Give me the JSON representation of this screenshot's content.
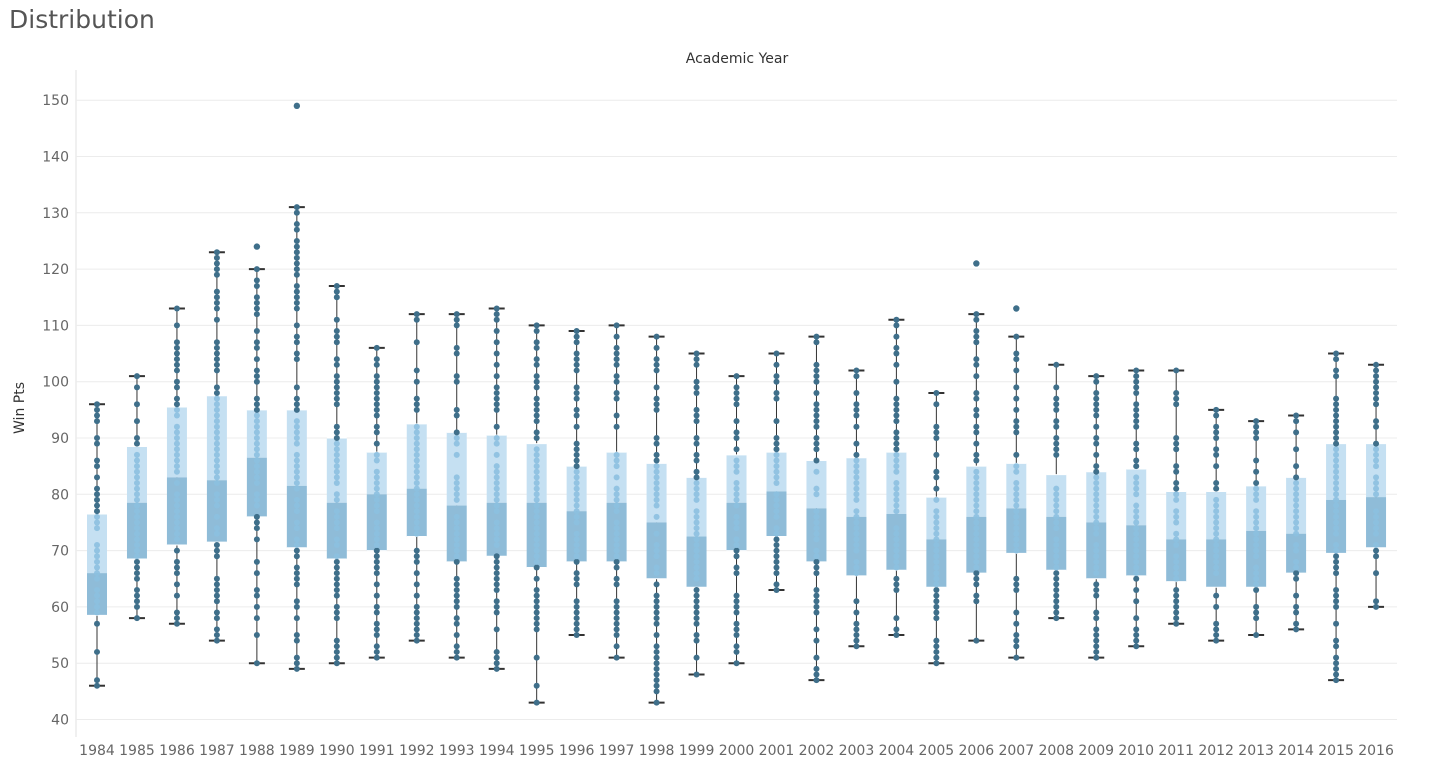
{
  "page": {
    "title": "Distribution"
  },
  "colors": {
    "upper_box": "#c5e0f2",
    "lower_box": "#8fbcd8",
    "point_light": "#8cc0e0",
    "point_dark": "#3f6f8a",
    "whisker": "#333333",
    "grid": "#ececec"
  },
  "chart_data": {
    "type": "box",
    "title": "Academic Year",
    "xlabel": "",
    "ylabel": "Win Pts",
    "ylim": [
      40,
      152
    ],
    "yticks": [
      40,
      50,
      60,
      70,
      80,
      90,
      100,
      110,
      120,
      130,
      140,
      150
    ],
    "grid": true,
    "categories": [
      "1984",
      "1985",
      "1986",
      "1987",
      "1988",
      "1989",
      "1990",
      "1991",
      "1992",
      "1993",
      "1994",
      "1995",
      "1996",
      "1997",
      "1998",
      "1999",
      "2000",
      "2001",
      "2002",
      "2003",
      "2004",
      "2005",
      "2006",
      "2007",
      "2008",
      "2009",
      "2010",
      "2011",
      "2012",
      "2013",
      "2014",
      "2015",
      "2016"
    ],
    "boxes": [
      {
        "min": 46,
        "q1": 58.5,
        "median": 66,
        "q3": 76.5,
        "max": 96,
        "outliers": []
      },
      {
        "min": 58,
        "q1": 68.5,
        "median": 78.5,
        "q3": 88.5,
        "max": 101,
        "outliers": []
      },
      {
        "min": 57,
        "q1": 71,
        "median": 83,
        "q3": 95.5,
        "max": 113,
        "outliers": []
      },
      {
        "min": 54,
        "q1": 71.5,
        "median": 82.5,
        "q3": 97.5,
        "max": 123,
        "outliers": []
      },
      {
        "min": 50,
        "q1": 76,
        "median": 86.5,
        "q3": 95,
        "max": 120,
        "outliers": [
          124
        ]
      },
      {
        "min": 49,
        "q1": 70.5,
        "median": 81.5,
        "q3": 95,
        "max": 131,
        "outliers": [
          149
        ]
      },
      {
        "min": 50,
        "q1": 68.5,
        "median": 78.5,
        "q3": 90,
        "max": 117,
        "outliers": []
      },
      {
        "min": 51,
        "q1": 70,
        "median": 80,
        "q3": 87.5,
        "max": 106,
        "outliers": []
      },
      {
        "min": 54,
        "q1": 72.5,
        "median": 81,
        "q3": 92.5,
        "max": 112,
        "outliers": []
      },
      {
        "min": 51,
        "q1": 68,
        "median": 78,
        "q3": 91,
        "max": 112,
        "outliers": []
      },
      {
        "min": 49,
        "q1": 69,
        "median": 78.5,
        "q3": 90.5,
        "max": 113,
        "outliers": []
      },
      {
        "min": 43,
        "q1": 67,
        "median": 78.5,
        "q3": 89,
        "max": 110,
        "outliers": []
      },
      {
        "min": 55,
        "q1": 68,
        "median": 77,
        "q3": 85,
        "max": 109,
        "outliers": []
      },
      {
        "min": 51,
        "q1": 68,
        "median": 78.5,
        "q3": 87.5,
        "max": 110,
        "outliers": []
      },
      {
        "min": 43,
        "q1": 65,
        "median": 75,
        "q3": 85.5,
        "max": 108,
        "outliers": []
      },
      {
        "min": 48,
        "q1": 63.5,
        "median": 72.5,
        "q3": 83,
        "max": 105,
        "outliers": []
      },
      {
        "min": 50,
        "q1": 70,
        "median": 78.5,
        "q3": 87,
        "max": 101,
        "outliers": []
      },
      {
        "min": 63,
        "q1": 72.5,
        "median": 80.5,
        "q3": 87.5,
        "max": 105,
        "outliers": []
      },
      {
        "min": 47,
        "q1": 68,
        "median": 77.5,
        "q3": 86,
        "max": 108,
        "outliers": []
      },
      {
        "min": 53,
        "q1": 65.5,
        "median": 76,
        "q3": 86.5,
        "max": 102,
        "outliers": []
      },
      {
        "min": 55,
        "q1": 66.5,
        "median": 76.5,
        "q3": 87.5,
        "max": 111,
        "outliers": []
      },
      {
        "min": 50,
        "q1": 63.5,
        "median": 72,
        "q3": 79.5,
        "max": 98,
        "outliers": []
      },
      {
        "min": 54,
        "q1": 66,
        "median": 76,
        "q3": 85,
        "max": 112,
        "outliers": [
          121
        ]
      },
      {
        "min": 51,
        "q1": 69.5,
        "median": 77.5,
        "q3": 85.5,
        "max": 108,
        "outliers": [
          113
        ]
      },
      {
        "min": 58,
        "q1": 66.5,
        "median": 76,
        "q3": 83.5,
        "max": 103,
        "outliers": []
      },
      {
        "min": 51,
        "q1": 65,
        "median": 75,
        "q3": 84,
        "max": 101,
        "outliers": []
      },
      {
        "min": 53,
        "q1": 65.5,
        "median": 74.5,
        "q3": 84.5,
        "max": 102,
        "outliers": []
      },
      {
        "min": 57,
        "q1": 64.5,
        "median": 72,
        "q3": 80.5,
        "max": 102,
        "outliers": []
      },
      {
        "min": 54,
        "q1": 63.5,
        "median": 72,
        "q3": 80.5,
        "max": 95,
        "outliers": []
      },
      {
        "min": 55,
        "q1": 63.5,
        "median": 73.5,
        "q3": 81.5,
        "max": 93,
        "outliers": []
      },
      {
        "min": 56,
        "q1": 66,
        "median": 73,
        "q3": 83,
        "max": 94,
        "outliers": []
      },
      {
        "min": 47,
        "q1": 69.5,
        "median": 79,
        "q3": 89,
        "max": 105,
        "outliers": []
      },
      {
        "min": 60,
        "q1": 70.5,
        "median": 79.5,
        "q3": 89,
        "max": 103,
        "outliers": []
      }
    ]
  }
}
